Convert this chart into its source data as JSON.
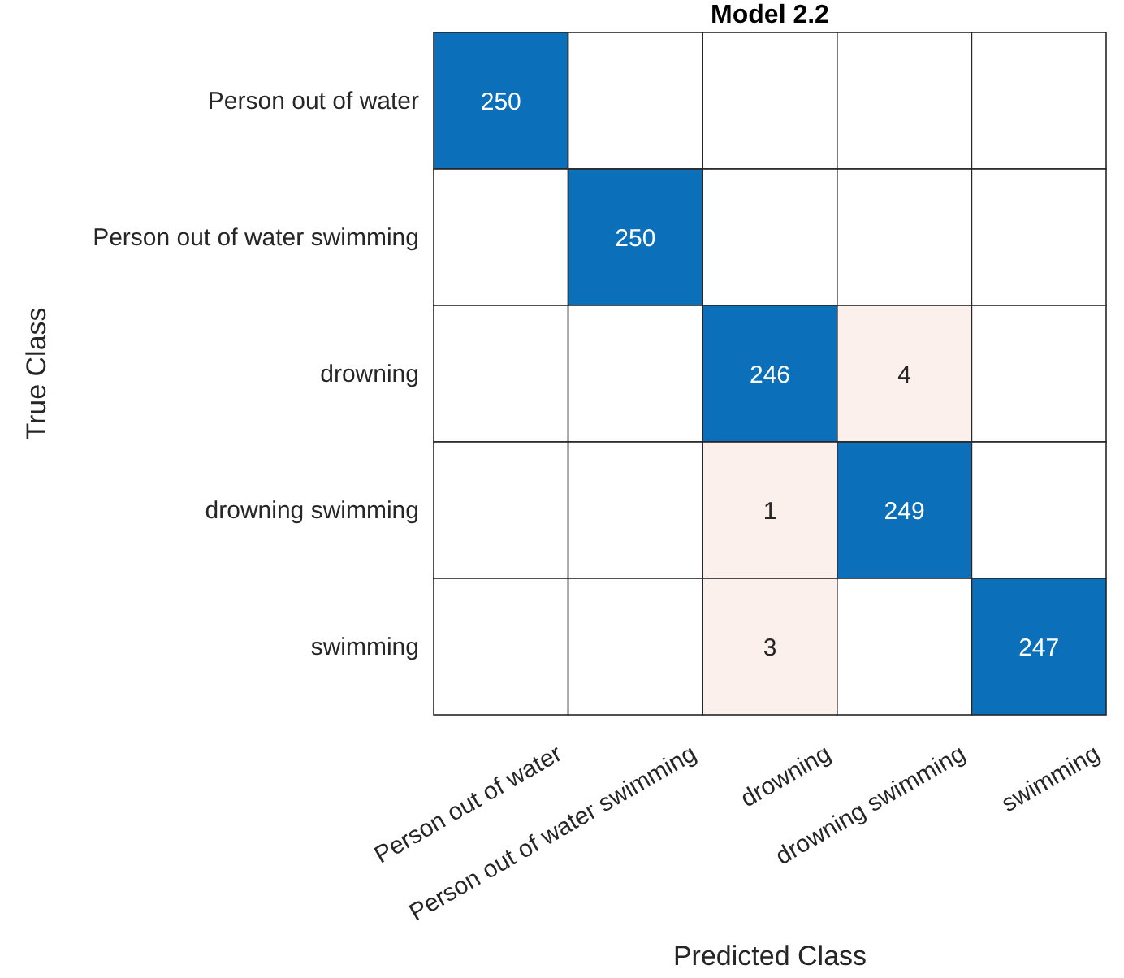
{
  "chart_data": {
    "type": "heatmap",
    "title": "Model 2.2",
    "xlabel": "Predicted Class",
    "ylabel": "True Class",
    "categories": [
      "Person out of water",
      "Person out of water swimming",
      "drowning",
      "drowning swimming",
      "swimming"
    ],
    "y_categories": [
      "Person out of water",
      "Person out of water swimming",
      "drowning",
      "drowning swimming",
      "swimming"
    ],
    "cells": [
      [
        250,
        null,
        null,
        null,
        null
      ],
      [
        null,
        250,
        null,
        null,
        null
      ],
      [
        null,
        null,
        246,
        4,
        null
      ],
      [
        null,
        null,
        1,
        249,
        null
      ],
      [
        null,
        null,
        3,
        null,
        247
      ]
    ],
    "data_labels": true
  }
}
